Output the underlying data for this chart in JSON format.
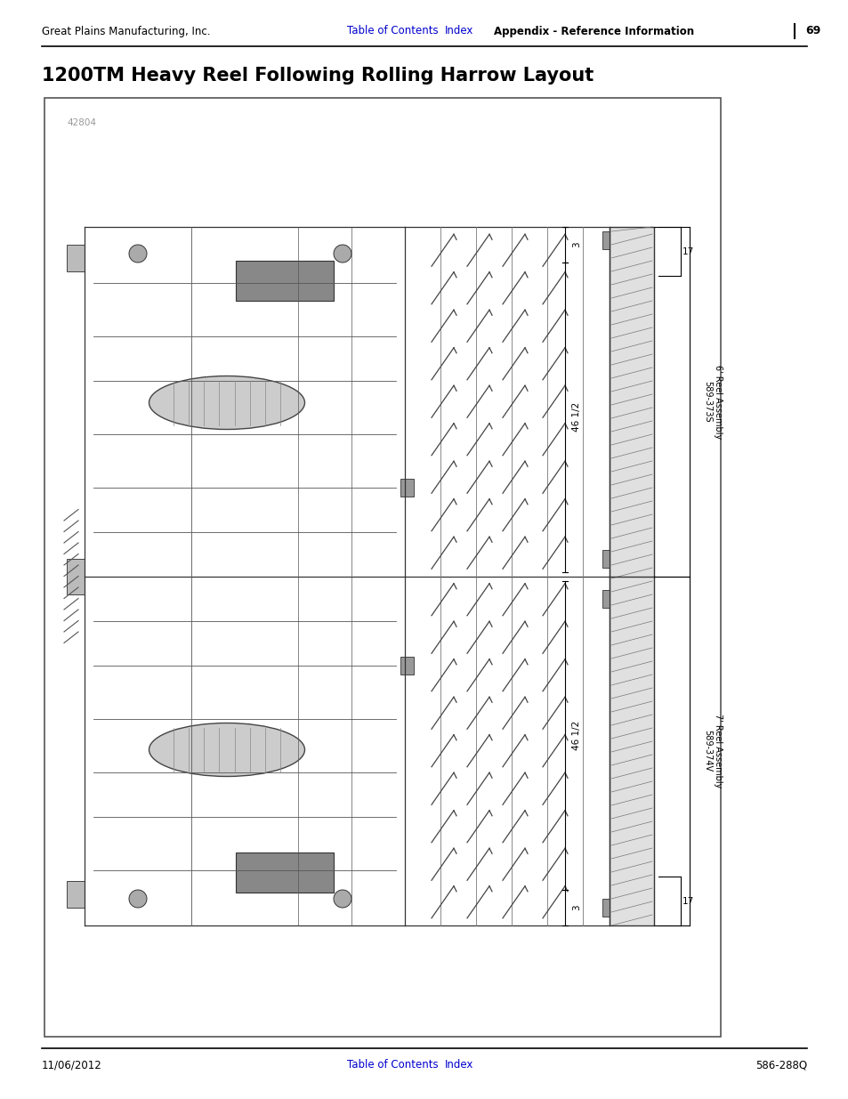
{
  "page_title": "1200TM Heavy Reel Following Rolling Harrow Layout",
  "header_left": "Great Plains Manufacturing, Inc.",
  "header_center_link1": "Table of Contents",
  "header_center_link2": "Index",
  "header_right_bold": "Appendix - Reference Information",
  "header_page": "69",
  "footer_left": "11/06/2012",
  "footer_center_link1": "Table of Contents",
  "footer_center_link2": "Index",
  "footer_right": "586-288Q",
  "diagram_label": "42804",
  "link_color": "#0000CD",
  "header_line_color": "#000000",
  "footer_line_color": "#000000",
  "bg_color": "#ffffff",
  "diagram_bg": "#ffffff",
  "diagram_border_color": "#555555",
  "annotation_top_right_1": "6' Reel Assembly\n589-373S",
  "annotation_bottom_right_1": "7' Reel Assembly\n589-374V",
  "dim_46_1_2_top": "46 1/2",
  "dim_46_1_2_bot": "46 1/2",
  "dim_17_top": "17",
  "dim_17_bot": "17",
  "dim_3_top": "3",
  "dim_3_bot": "3"
}
